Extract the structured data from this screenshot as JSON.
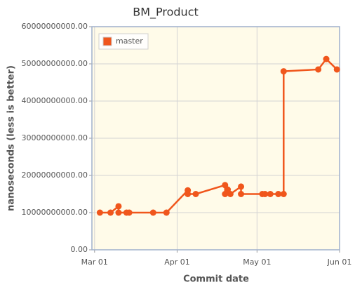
{
  "chart_data": {
    "type": "line",
    "title": "BM_Product",
    "xlabel": "Commit date",
    "ylabel": "nanoseconds (less is better)",
    "series": [
      {
        "name": "master",
        "color": "#f0561c",
        "x": [
          "03-03",
          "03-07",
          "03-10",
          "03-10",
          "03-13",
          "03-14",
          "03-23",
          "03-28",
          "04-05",
          "04-05",
          "04-08",
          "04-19",
          "04-19",
          "04-20",
          "04-21",
          "04-25",
          "04-25",
          "05-03",
          "05-04",
          "05-06",
          "05-09",
          "05-11",
          "05-11",
          "05-24",
          "05-27",
          "05-31"
        ],
        "values": [
          10000000000,
          10000000000,
          11700000000,
          10000000000,
          10000000000,
          10000000000,
          10000000000,
          10000000000,
          16000000000,
          15000000000,
          15000000000,
          17400000000,
          15000000000,
          16200000000,
          15000000000,
          17000000000,
          15000000000,
          15000000000,
          15000000000,
          15000000000,
          15000000000,
          15000000000,
          48000000000,
          48500000000,
          51300000000,
          48500000000
        ]
      }
    ],
    "xlim": [
      "02-28",
      "06-01"
    ],
    "xticks": [
      {
        "value": "03-01",
        "label": "Mar 01"
      },
      {
        "value": "04-01",
        "label": "Apr 01"
      },
      {
        "value": "05-01",
        "label": "May 01"
      },
      {
        "value": "06-01",
        "label": "Jun 01"
      }
    ],
    "ylim": [
      0,
      60000000000
    ],
    "yticks": [
      {
        "value": 0,
        "label": "0.00"
      },
      {
        "value": 10000000000,
        "label": "10000000000.00"
      },
      {
        "value": 20000000000,
        "label": "20000000000.00"
      },
      {
        "value": 30000000000,
        "label": "30000000000.00"
      },
      {
        "value": 40000000000,
        "label": "40000000000.00"
      },
      {
        "value": 50000000000,
        "label": "50000000000.00"
      },
      {
        "value": 60000000000,
        "label": "60000000000.00"
      }
    ],
    "grid": true,
    "legend": "top-left"
  }
}
